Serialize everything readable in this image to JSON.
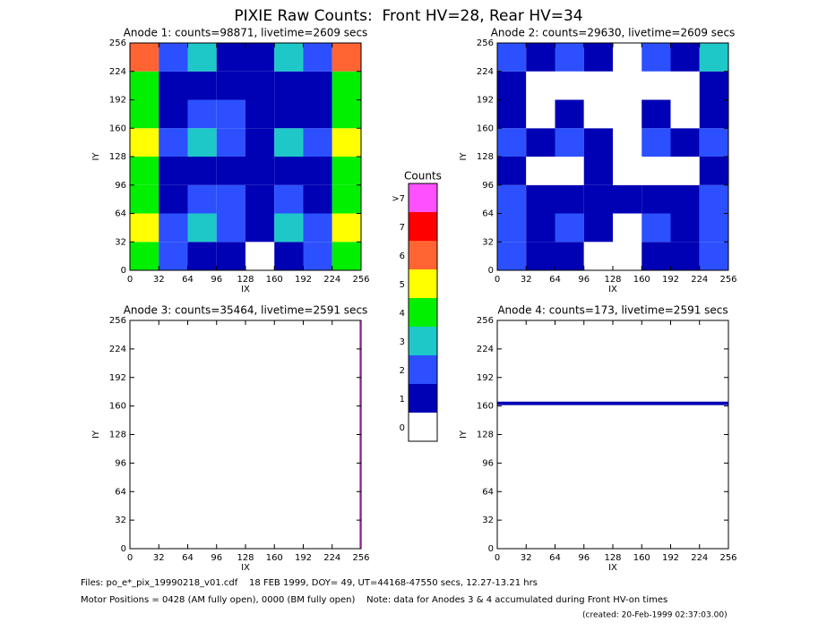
{
  "title": "PIXIE Raw Counts:  Front HV=28, Rear HV=34",
  "colorbar": {
    "title": "Counts",
    "labels": [
      "0",
      "1",
      "2",
      "3",
      "4",
      "5",
      "6",
      "7",
      ">7"
    ],
    "colors": [
      "#ffffff",
      "#0000b4",
      "#2c50ff",
      "#1ec8c8",
      "#00f000",
      "#ffff00",
      "#ff6432",
      "#ff0000",
      "#ff50ff"
    ]
  },
  "chart_data": [
    {
      "type": "heatmap",
      "title": "Anode 1: counts=98871, livetime=2609 secs",
      "xlabel": "IX",
      "ylabel": "IY",
      "xlim": [
        0,
        256
      ],
      "ylim": [
        0,
        256
      ],
      "xticks": [
        0,
        32,
        64,
        96,
        128,
        160,
        192,
        224,
        256
      ],
      "yticks": [
        0,
        32,
        64,
        96,
        128,
        160,
        192,
        224,
        256
      ],
      "xbins": [
        0,
        32,
        64,
        96,
        128,
        160,
        192,
        224,
        256
      ],
      "ybins": [
        0,
        32,
        64,
        96,
        128,
        160,
        192,
        224,
        256
      ],
      "z": [
        [
          4,
          2,
          1,
          1,
          0,
          1,
          2,
          4
        ],
        [
          5,
          2,
          3,
          2,
          1,
          3,
          2,
          5
        ],
        [
          4,
          1,
          2,
          2,
          1,
          2,
          1,
          4
        ],
        [
          4,
          1,
          1,
          1,
          1,
          1,
          1,
          4
        ],
        [
          5,
          2,
          3,
          2,
          1,
          3,
          2,
          5
        ],
        [
          4,
          1,
          2,
          2,
          1,
          1,
          1,
          4
        ],
        [
          4,
          1,
          1,
          1,
          1,
          1,
          1,
          4
        ],
        [
          6,
          2,
          3,
          1,
          1,
          3,
          2,
          6
        ]
      ]
    },
    {
      "type": "heatmap",
      "title": "Anode 2: counts=29630, livetime=2609 secs",
      "xlabel": "IX",
      "ylabel": "IY",
      "xlim": [
        0,
        256
      ],
      "ylim": [
        0,
        256
      ],
      "xticks": [
        0,
        32,
        64,
        96,
        128,
        160,
        192,
        224,
        256
      ],
      "yticks": [
        0,
        32,
        64,
        96,
        128,
        160,
        192,
        224,
        256
      ],
      "xbins": [
        0,
        32,
        64,
        96,
        128,
        160,
        192,
        224,
        256
      ],
      "ybins": [
        0,
        32,
        64,
        96,
        128,
        160,
        192,
        224,
        256
      ],
      "z": [
        [
          2,
          1,
          1,
          0,
          0,
          1,
          1,
          2
        ],
        [
          2,
          1,
          2,
          1,
          0,
          2,
          1,
          2
        ],
        [
          2,
          1,
          1,
          1,
          1,
          1,
          1,
          2
        ],
        [
          1,
          0,
          0,
          1,
          0,
          0,
          0,
          1
        ],
        [
          2,
          1,
          2,
          1,
          0,
          2,
          1,
          2
        ],
        [
          1,
          0,
          1,
          0,
          0,
          1,
          0,
          1
        ],
        [
          1,
          0,
          0,
          0,
          0,
          0,
          0,
          1
        ],
        [
          2,
          1,
          2,
          1,
          0,
          2,
          1,
          3
        ]
      ]
    },
    {
      "type": "heatmap",
      "title": "Anode 3: counts=35464, livetime=2591 secs",
      "xlabel": "IX",
      "ylabel": "IY",
      "xlim": [
        0,
        256
      ],
      "ylim": [
        0,
        256
      ],
      "xticks": [
        0,
        32,
        64,
        96,
        128,
        160,
        192,
        224,
        256
      ],
      "yticks": [
        0,
        32,
        64,
        96,
        128,
        160,
        192,
        224,
        256
      ],
      "xbins": [
        0,
        254,
        256
      ],
      "ybins": [
        0,
        256
      ],
      "z": [
        [
          0,
          8
        ]
      ]
    },
    {
      "type": "heatmap",
      "title": "Anode 4: counts=173, livetime=2591 secs",
      "xlabel": "IX",
      "ylabel": "IY",
      "xlim": [
        0,
        256
      ],
      "ylim": [
        0,
        256
      ],
      "xticks": [
        0,
        32,
        64,
        96,
        128,
        160,
        192,
        224,
        256
      ],
      "yticks": [
        0,
        32,
        64,
        96,
        128,
        160,
        192,
        224,
        256
      ],
      "xbins": [
        0,
        256
      ],
      "ybins": [
        0,
        161,
        165,
        256
      ],
      "z": [
        [
          0
        ],
        [
          1
        ],
        [
          0
        ]
      ]
    }
  ],
  "footer": [
    "Files: po_e*_pix_19990218_v01.cdf    18 FEB 1999, DOY= 49, UT=44168-47550 secs, 12.27-13.21 hrs",
    "Motor Positions = 0428 (AM fully open), 0000 (BM fully open)    Note: data for Anodes 3 & 4 accumulated during Front HV-on times",
    "(created: 20-Feb-1999 02:37:03.00)"
  ]
}
